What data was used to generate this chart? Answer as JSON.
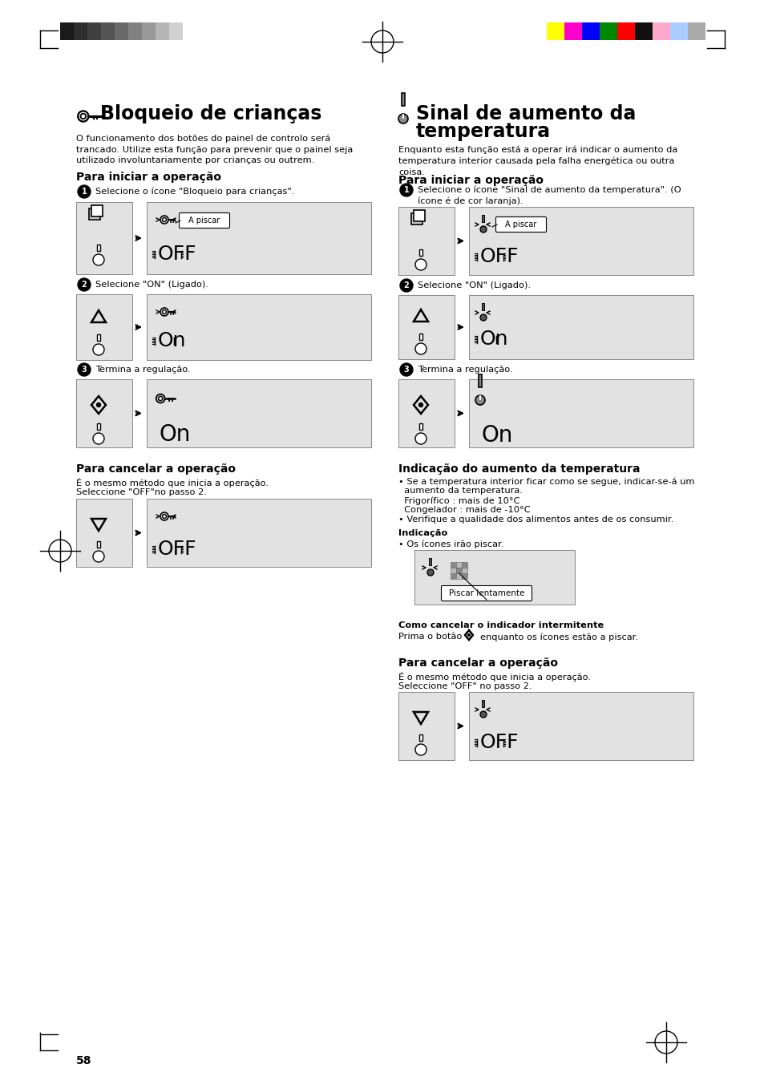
{
  "page_number": "58",
  "bg": "#ffffff",
  "title_left": "Bloqueio de crianças",
  "title_right_line1": "Sinal de aumento da",
  "title_right_line2": "temperatura",
  "body_left": "O funcionamento dos botões do painel de controlo será\ntrancado. Utilize esta função para prevenir que o painel seja\nutilizado involuntariamente por crianças ou outrem.",
  "body_right": "Enquanto esta função está a operar irá indicar o aumento da\ntemperatura interior causada pela falha energética ou outra\ncoisa.",
  "subtitle_start": "Para iniciar a operação",
  "subtitle_cancel": "Para cancelar a operação",
  "step1_left": "Selecione o ícone \"Bloqueio para crianças\".",
  "step2_left": "Selecione \"ON\" (Ligado).",
  "step3_left": "Termina a regulação.",
  "step1_right": "Selecione o ícone \"Sinal de aumento da temperatura\". (O\nícone é de cor laranja).",
  "step2_right": "Selecione \"ON\" (Ligado).",
  "step3_right": "Termina a regulação.",
  "cancel_left_text1": "É o mesmo método que inicia a operação.",
  "cancel_left_text2": "Seleccione \"OFF\"no passo 2.",
  "cancel_right_heading": "Indicação do aumento da temperatura",
  "cancel_right_body_1": "• Se a temperatura interior ficar como se segue, indicar-se-á um",
  "cancel_right_body_2": "  aumento da temperatura.",
  "cancel_right_body_3": "  Frigorífico : mais de 10°C",
  "cancel_right_body_4": "  Congelador : mais de -10°C",
  "cancel_right_body_5": "• Verifique a qualidade dos alimentos antes de os consumir.",
  "indication_bold": "Indicação",
  "indication_bullet": "• Os ícones irão piscar.",
  "piscar_label": "Piscar lentamente",
  "cancel_intermitente": "Como cancelar o indicador intermitente",
  "cancel_intermitente_body": "Prima o botão   enquanto os ícones estão a piscar.",
  "cancel_right_section": "Para cancelar a operação",
  "cancel_right_text1": "É o mesmo método que inicia a operação.",
  "cancel_right_text2": "Seleccione \"OFF\" no passo 2.",
  "gray_bar": "#d8d8d8",
  "gray_box": "#e2e2e2",
  "gray_colors": [
    "#1a1a1a",
    "#2d2d2d",
    "#404040",
    "#555555",
    "#6a6a6a",
    "#818181",
    "#999999",
    "#b5b5b5",
    "#d0d0d0",
    "#ffffff"
  ],
  "color_colors": [
    "#ffff00",
    "#ff00cc",
    "#0000ff",
    "#008800",
    "#ff0000",
    "#111111",
    "#ffaacc",
    "#aaccff",
    "#aaaaaa"
  ]
}
